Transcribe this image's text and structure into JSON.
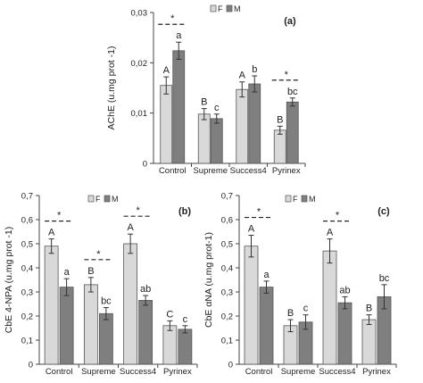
{
  "colors": {
    "F": "#d9d9d9",
    "M": "#7f7f7f",
    "outline": "#555555",
    "axis": "#444444"
  },
  "chart_data": [
    {
      "type": "bar",
      "panel_label": "(a)",
      "ylabel": "AChE (u.mg prot -1)",
      "ylim": [
        0,
        0.03
      ],
      "yticks": [
        "0",
        "0,01",
        "0,02",
        "0,03"
      ],
      "ytick_values": [
        0,
        0.01,
        0.02,
        0.03
      ],
      "categories": [
        "Control",
        "Supreme",
        "Success4",
        "Pyrinex"
      ],
      "legend": [
        "F",
        "M"
      ],
      "series": [
        {
          "name": "F",
          "values": [
            0.0155,
            0.0098,
            0.0147,
            0.0066
          ],
          "errors": [
            0.0017,
            0.0011,
            0.0015,
            0.0008
          ],
          "letters": [
            "A",
            "B",
            "A",
            "B"
          ]
        },
        {
          "name": "M",
          "values": [
            0.0224,
            0.0089,
            0.0158,
            0.0122
          ],
          "errors": [
            0.0017,
            0.0009,
            0.0016,
            0.0008
          ],
          "letters": [
            "a",
            "c",
            "b",
            "bc"
          ]
        }
      ],
      "significance": [
        {
          "category": "Control",
          "mark": "*"
        },
        {
          "category": "Pyrinex",
          "mark": "*"
        }
      ]
    },
    {
      "type": "bar",
      "panel_label": "(b)",
      "ylabel": "CbE 4-NPA (u.mg prot -1)",
      "ylim": [
        0,
        0.7
      ],
      "yticks": [
        "0",
        "0,1",
        "0,2",
        "0,3",
        "0,4",
        "0,5",
        "0,6",
        "0,7"
      ],
      "ytick_values": [
        0,
        0.1,
        0.2,
        0.3,
        0.4,
        0.5,
        0.6,
        0.7
      ],
      "categories": [
        "Control",
        "Supreme",
        "Success4",
        "Pyrinex"
      ],
      "legend": [
        "F",
        "M"
      ],
      "series": [
        {
          "name": "F",
          "values": [
            0.49,
            0.33,
            0.5,
            0.16
          ],
          "errors": [
            0.03,
            0.03,
            0.04,
            0.02
          ],
          "letters": [
            "A",
            "B",
            "A",
            "C"
          ]
        },
        {
          "name": "M",
          "values": [
            0.32,
            0.21,
            0.265,
            0.145
          ],
          "errors": [
            0.035,
            0.025,
            0.02,
            0.015
          ],
          "letters": [
            "a",
            "bc",
            "ab",
            "c"
          ]
        }
      ],
      "significance": [
        {
          "category": "Control",
          "mark": "*"
        },
        {
          "category": "Supreme",
          "mark": "*"
        },
        {
          "category": "Success4",
          "mark": "*"
        }
      ]
    },
    {
      "type": "bar",
      "panel_label": "(c)",
      "ylabel": "CbE αNA (u.mg prot-1)",
      "ylim": [
        0,
        0.7
      ],
      "yticks": [
        "0",
        "0,1",
        "0,2",
        "0,3",
        "0,4",
        "0,5",
        "0,6",
        "0,7"
      ],
      "ytick_values": [
        0,
        0.1,
        0.2,
        0.3,
        0.4,
        0.5,
        0.6,
        0.7
      ],
      "categories": [
        "Control",
        "Supreme",
        "Success4",
        "Pyrinex"
      ],
      "legend": [
        "F",
        "M"
      ],
      "series": [
        {
          "name": "F",
          "values": [
            0.49,
            0.16,
            0.47,
            0.185
          ],
          "errors": [
            0.045,
            0.025,
            0.05,
            0.02
          ],
          "letters": [
            "A",
            "B",
            "A",
            "B"
          ]
        },
        {
          "name": "M",
          "values": [
            0.32,
            0.175,
            0.255,
            0.28
          ],
          "errors": [
            0.025,
            0.03,
            0.025,
            0.05
          ],
          "letters": [
            "a",
            "c",
            "ab",
            "bc"
          ]
        }
      ],
      "significance": [
        {
          "category": "Control",
          "mark": "*"
        },
        {
          "category": "Success4",
          "mark": "*"
        }
      ]
    }
  ]
}
